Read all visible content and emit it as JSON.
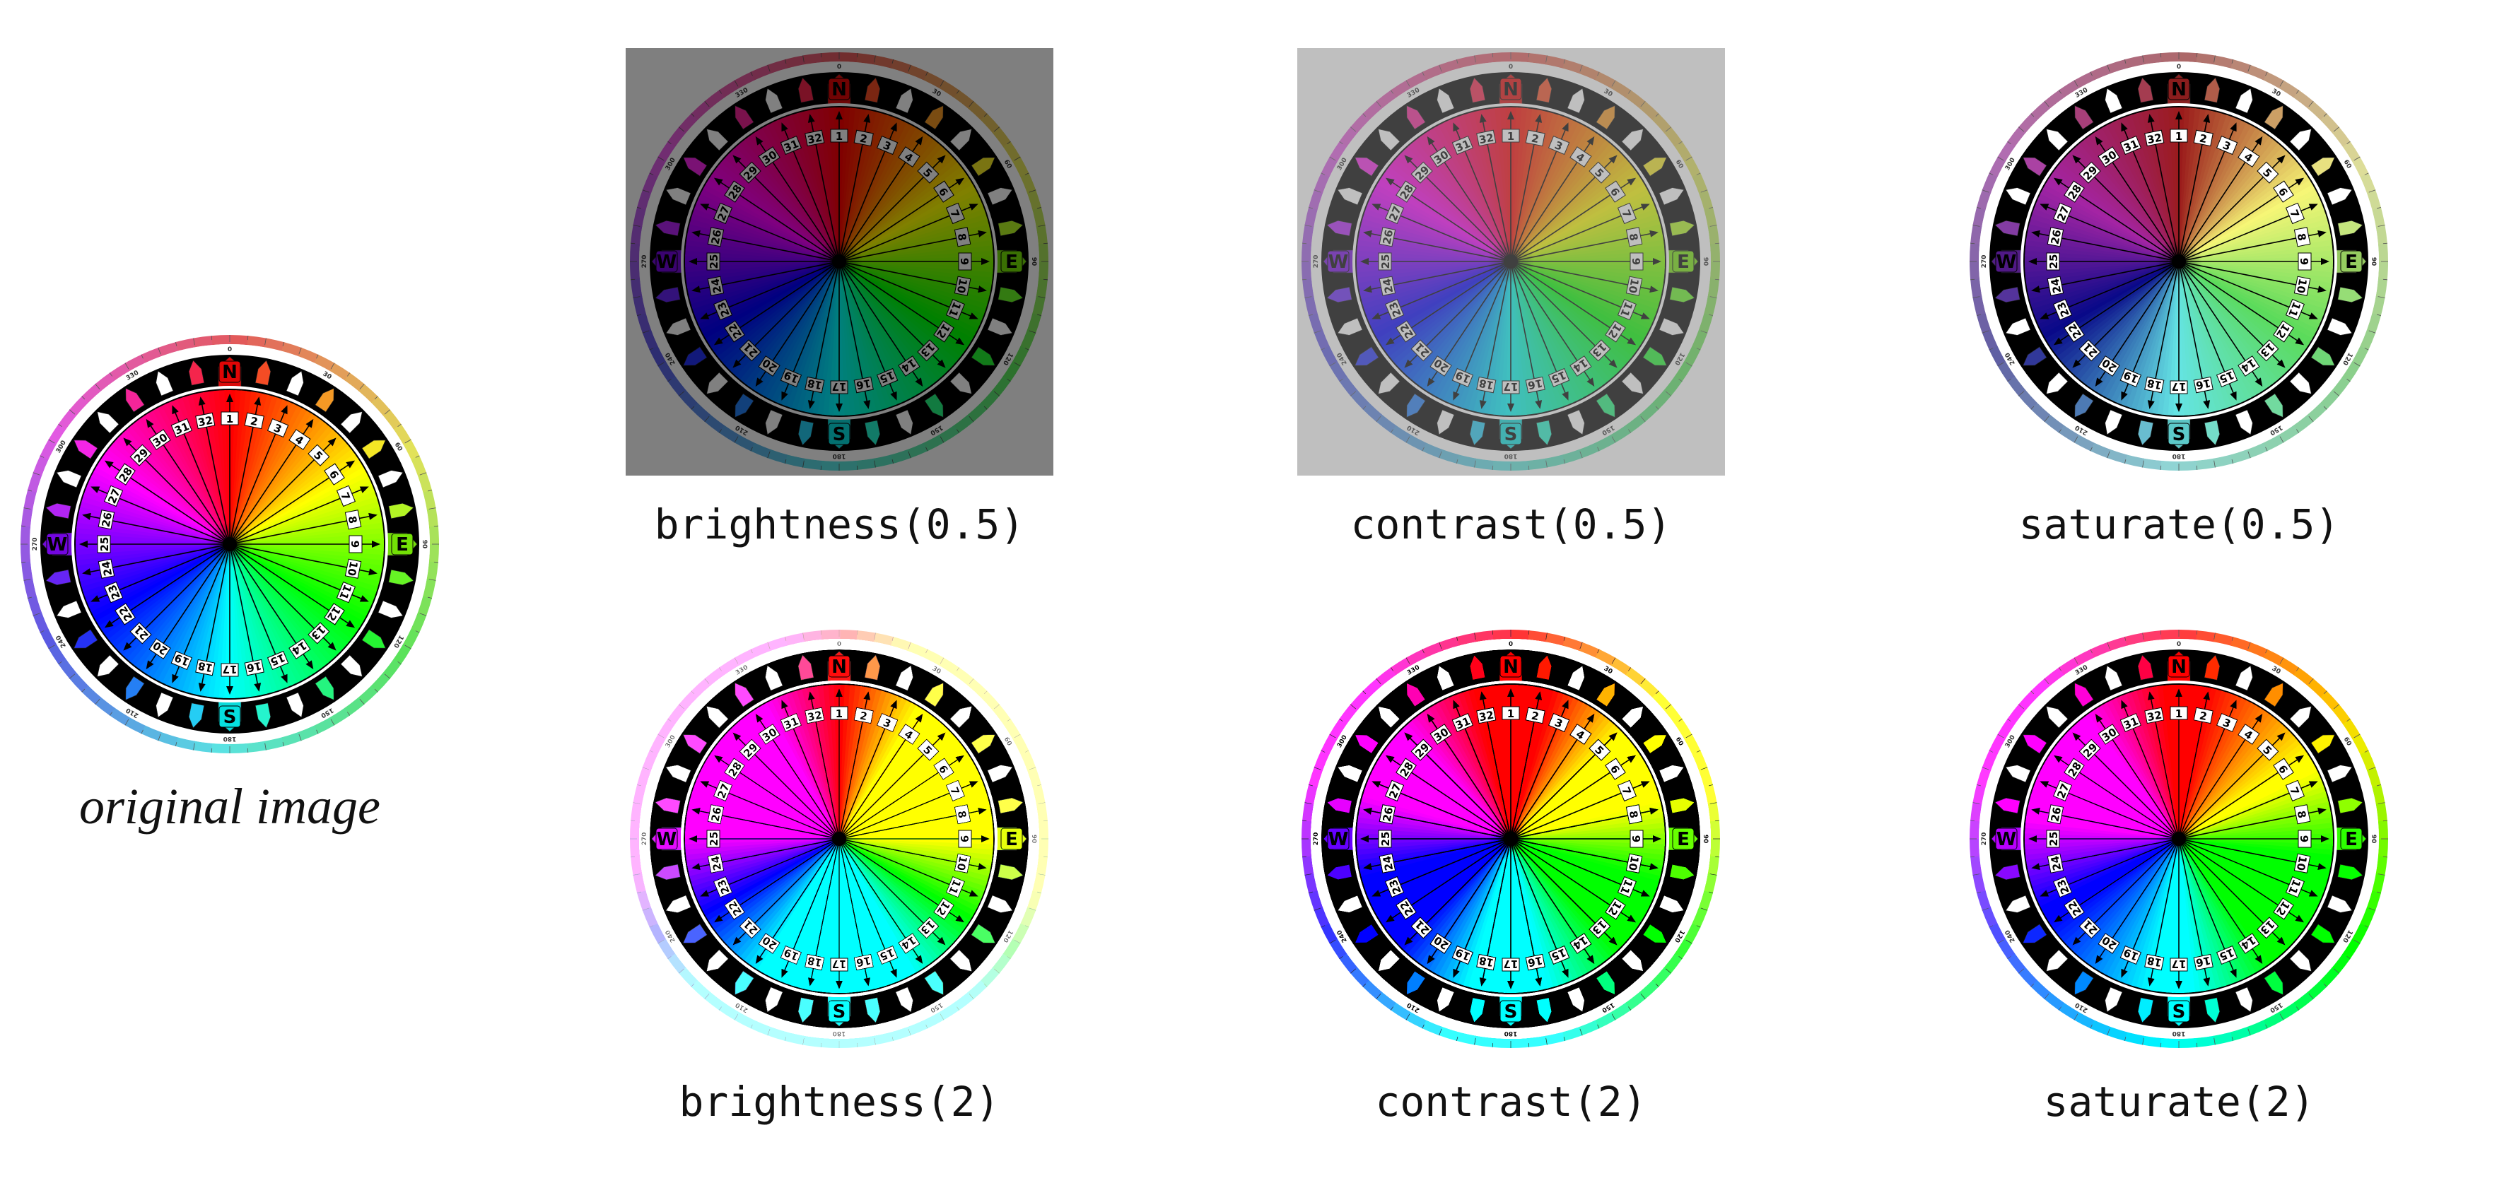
{
  "panels": [
    {
      "id": "original",
      "caption": "original image",
      "filter": ""
    },
    {
      "id": "brightness-half",
      "caption": "brightness(0.5)",
      "filter": "brightness(0.5)"
    },
    {
      "id": "contrast-half",
      "caption": "contrast(0.5)",
      "filter": "contrast(0.5)"
    },
    {
      "id": "saturate-half",
      "caption": "saturate(0.5)",
      "filter": "saturate(0.5)"
    },
    {
      "id": "brightness-two",
      "caption": "brightness(2)",
      "filter": "brightness(2)"
    },
    {
      "id": "contrast-two",
      "caption": "contrast(2)",
      "filter": "contrast(2)"
    },
    {
      "id": "saturate-two",
      "caption": "saturate(2)",
      "filter": "saturate(2)"
    }
  ],
  "compass": {
    "cardinals": [
      "N",
      "E",
      "S",
      "W"
    ],
    "points": [
      "1",
      "2",
      "3",
      "4",
      "5",
      "6",
      "7",
      "8",
      "9",
      "10",
      "11",
      "12",
      "13",
      "14",
      "15",
      "16",
      "17",
      "18",
      "19",
      "20",
      "21",
      "22",
      "23",
      "24",
      "25",
      "26",
      "27",
      "28",
      "29",
      "30",
      "31",
      "32"
    ],
    "degree_labels": [
      "0",
      "30",
      "60",
      "90",
      "120",
      "150",
      "180",
      "210",
      "240",
      "270",
      "300",
      "330"
    ],
    "colors": {
      "ring_dark": "#000000",
      "ring_light": "#ffffff",
      "hub": "#000000"
    }
  }
}
